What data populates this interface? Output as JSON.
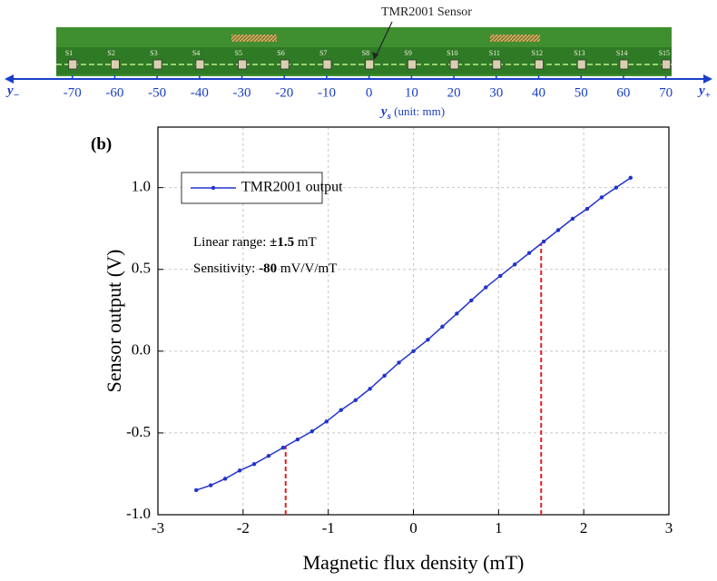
{
  "chart_data": [
    {
      "type": "ruler",
      "annotation": "TMR2001 Sensor",
      "sensor_labels": [
        "S1",
        "S2",
        "S3",
        "S4",
        "S5",
        "S6",
        "S7",
        "S8",
        "S9",
        "S10",
        "S11",
        "S12",
        "S13",
        "S14",
        "S15"
      ],
      "xlim": [
        -86,
        81
      ],
      "xticks": [
        -70,
        -60,
        -50,
        -40,
        -30,
        -20,
        -10,
        0,
        10,
        20,
        30,
        40,
        50,
        60,
        70
      ],
      "xlabel": {
        "main": "y",
        "sub": "s",
        "rest": " (unit: mm)"
      },
      "end_labels": [
        {
          "main": "y",
          "sub": "−"
        },
        {
          "main": "y",
          "sub": "+"
        }
      ],
      "color": "#1a3fc8"
    },
    {
      "type": "line",
      "panel": "(b)",
      "xlabel": "Magnetic flux density (mT)",
      "ylabel": "Sensor output (V)",
      "annotations": [
        [
          "Linear range: ",
          "±1.5",
          " mT"
        ],
        [
          "Sensitivity: ",
          "-80",
          " mV/V/mT"
        ]
      ],
      "x": [
        -2.55,
        -2.38,
        -2.21,
        -2.04,
        -1.87,
        -1.7,
        -1.53,
        -1.36,
        -1.19,
        -1.02,
        -0.85,
        -0.68,
        -0.51,
        -0.34,
        -0.17,
        0.0,
        0.17,
        0.34,
        0.51,
        0.68,
        0.85,
        1.02,
        1.19,
        1.36,
        1.53,
        1.7,
        1.87,
        2.04,
        2.21,
        2.38,
        2.55
      ],
      "series": [
        {
          "name": "TMR2001 output",
          "color": "#2233cc",
          "values": [
            -0.85,
            -0.82,
            -0.78,
            -0.73,
            -0.69,
            -0.64,
            -0.59,
            -0.54,
            -0.49,
            -0.43,
            -0.36,
            -0.3,
            -0.23,
            -0.15,
            -0.07,
            0.0,
            0.07,
            0.15,
            0.23,
            0.31,
            0.39,
            0.46,
            0.53,
            0.6,
            0.67,
            0.74,
            0.81,
            0.87,
            0.94,
            1.0,
            1.06
          ]
        }
      ],
      "reference_lines": [
        {
          "x": -1.5,
          "y": -0.58
        },
        {
          "x": 1.5,
          "y": 0.66
        }
      ],
      "reference_color": "#e02020",
      "xlim": [
        -3,
        3
      ],
      "ylim": [
        -1,
        1.37
      ],
      "xticks": [
        -3,
        -2,
        -1,
        0,
        1,
        2,
        3
      ],
      "yticks": [
        {
          "value": -1,
          "label": "-1.0"
        },
        -0.5,
        {
          "value": 0,
          "label": "0.0"
        },
        0.5,
        {
          "value": 1,
          "label": "1.0"
        }
      ],
      "grid": true,
      "legend": "top-left"
    }
  ]
}
